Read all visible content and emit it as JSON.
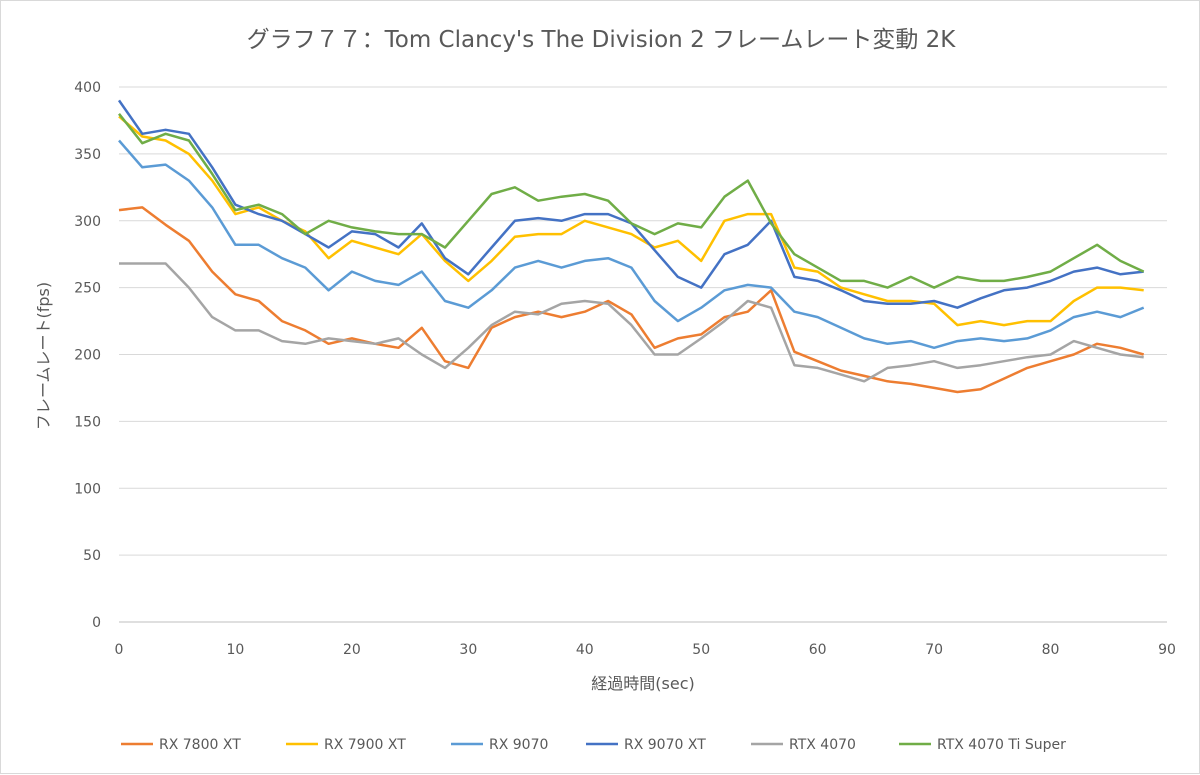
{
  "chart_data": {
    "type": "line",
    "title": "グラフ７７：Tom Clancy's The Division 2 フレームレート変動 2K",
    "xlabel": "経過時間(sec)",
    "ylabel": "フレームレート(fps)",
    "xlim": [
      0,
      90
    ],
    "ylim": [
      0,
      400
    ],
    "xticks": [
      0,
      10,
      20,
      30,
      40,
      50,
      60,
      70,
      80,
      90
    ],
    "yticks": [
      0,
      50,
      100,
      150,
      200,
      250,
      300,
      350,
      400
    ],
    "grid": true,
    "legend": "bottom",
    "x": [
      0,
      2,
      4,
      6,
      8,
      10,
      12,
      14,
      16,
      18,
      20,
      22,
      24,
      26,
      28,
      30,
      32,
      34,
      36,
      38,
      40,
      42,
      44,
      46,
      48,
      50,
      52,
      54,
      56,
      58,
      60,
      62,
      64,
      66,
      68,
      70,
      72,
      74,
      76,
      78,
      80,
      82,
      84,
      86,
      88
    ],
    "series": [
      {
        "name": "RX 7800 XT",
        "color": "#ed7d31",
        "values": [
          308,
          310,
          297,
          285,
          262,
          245,
          240,
          225,
          218,
          208,
          212,
          208,
          205,
          220,
          195,
          190,
          220,
          228,
          232,
          228,
          232,
          240,
          230,
          205,
          212,
          215,
          228,
          232,
          248,
          202,
          195,
          188,
          184,
          180,
          178,
          175,
          172,
          174,
          182,
          190,
          195,
          200,
          208,
          205,
          200
        ]
      },
      {
        "name": "RX 7900 XT",
        "color": "#ffc000",
        "values": [
          378,
          363,
          360,
          350,
          330,
          305,
          310,
          300,
          292,
          272,
          285,
          280,
          275,
          290,
          270,
          255,
          270,
          288,
          290,
          290,
          300,
          295,
          290,
          280,
          285,
          270,
          300,
          305,
          305,
          265,
          262,
          250,
          245,
          240,
          240,
          238,
          222,
          225,
          222,
          225,
          225,
          240,
          250,
          250,
          248
        ]
      },
      {
        "name": "RX 9070",
        "color": "#5b9bd5",
        "values": [
          360,
          340,
          342,
          330,
          310,
          282,
          282,
          272,
          265,
          248,
          262,
          255,
          252,
          262,
          240,
          235,
          248,
          265,
          270,
          265,
          270,
          272,
          265,
          240,
          225,
          235,
          248,
          252,
          250,
          232,
          228,
          220,
          212,
          208,
          210,
          205,
          210,
          212,
          210,
          212,
          218,
          228,
          232,
          228,
          235
        ]
      },
      {
        "name": "RX 9070 XT",
        "color": "#4472c4",
        "values": [
          390,
          365,
          368,
          365,
          340,
          312,
          305,
          300,
          290,
          280,
          292,
          290,
          280,
          298,
          272,
          260,
          280,
          300,
          302,
          300,
          305,
          305,
          298,
          278,
          258,
          250,
          275,
          282,
          300,
          258,
          255,
          248,
          240,
          238,
          238,
          240,
          235,
          242,
          248,
          250,
          255,
          262,
          265,
          260,
          262
        ]
      },
      {
        "name": "RTX 4070",
        "color": "#a5a5a5",
        "values": [
          268,
          268,
          268,
          250,
          228,
          218,
          218,
          210,
          208,
          212,
          210,
          208,
          212,
          200,
          190,
          205,
          222,
          232,
          230,
          238,
          240,
          238,
          222,
          200,
          200,
          212,
          225,
          240,
          235,
          192,
          190,
          185,
          180,
          190,
          192,
          195,
          190,
          192,
          195,
          198,
          200,
          210,
          205,
          200,
          198
        ]
      },
      {
        "name": "RTX 4070 Ti Super",
        "color": "#70ad47",
        "values": [
          380,
          358,
          365,
          360,
          335,
          308,
          312,
          305,
          290,
          300,
          295,
          292,
          290,
          290,
          280,
          300,
          320,
          325,
          315,
          318,
          320,
          315,
          298,
          290,
          298,
          295,
          318,
          330,
          298,
          275,
          265,
          255,
          255,
          250,
          258,
          250,
          258,
          255,
          255,
          258,
          262,
          272,
          282,
          270,
          262
        ]
      }
    ]
  }
}
